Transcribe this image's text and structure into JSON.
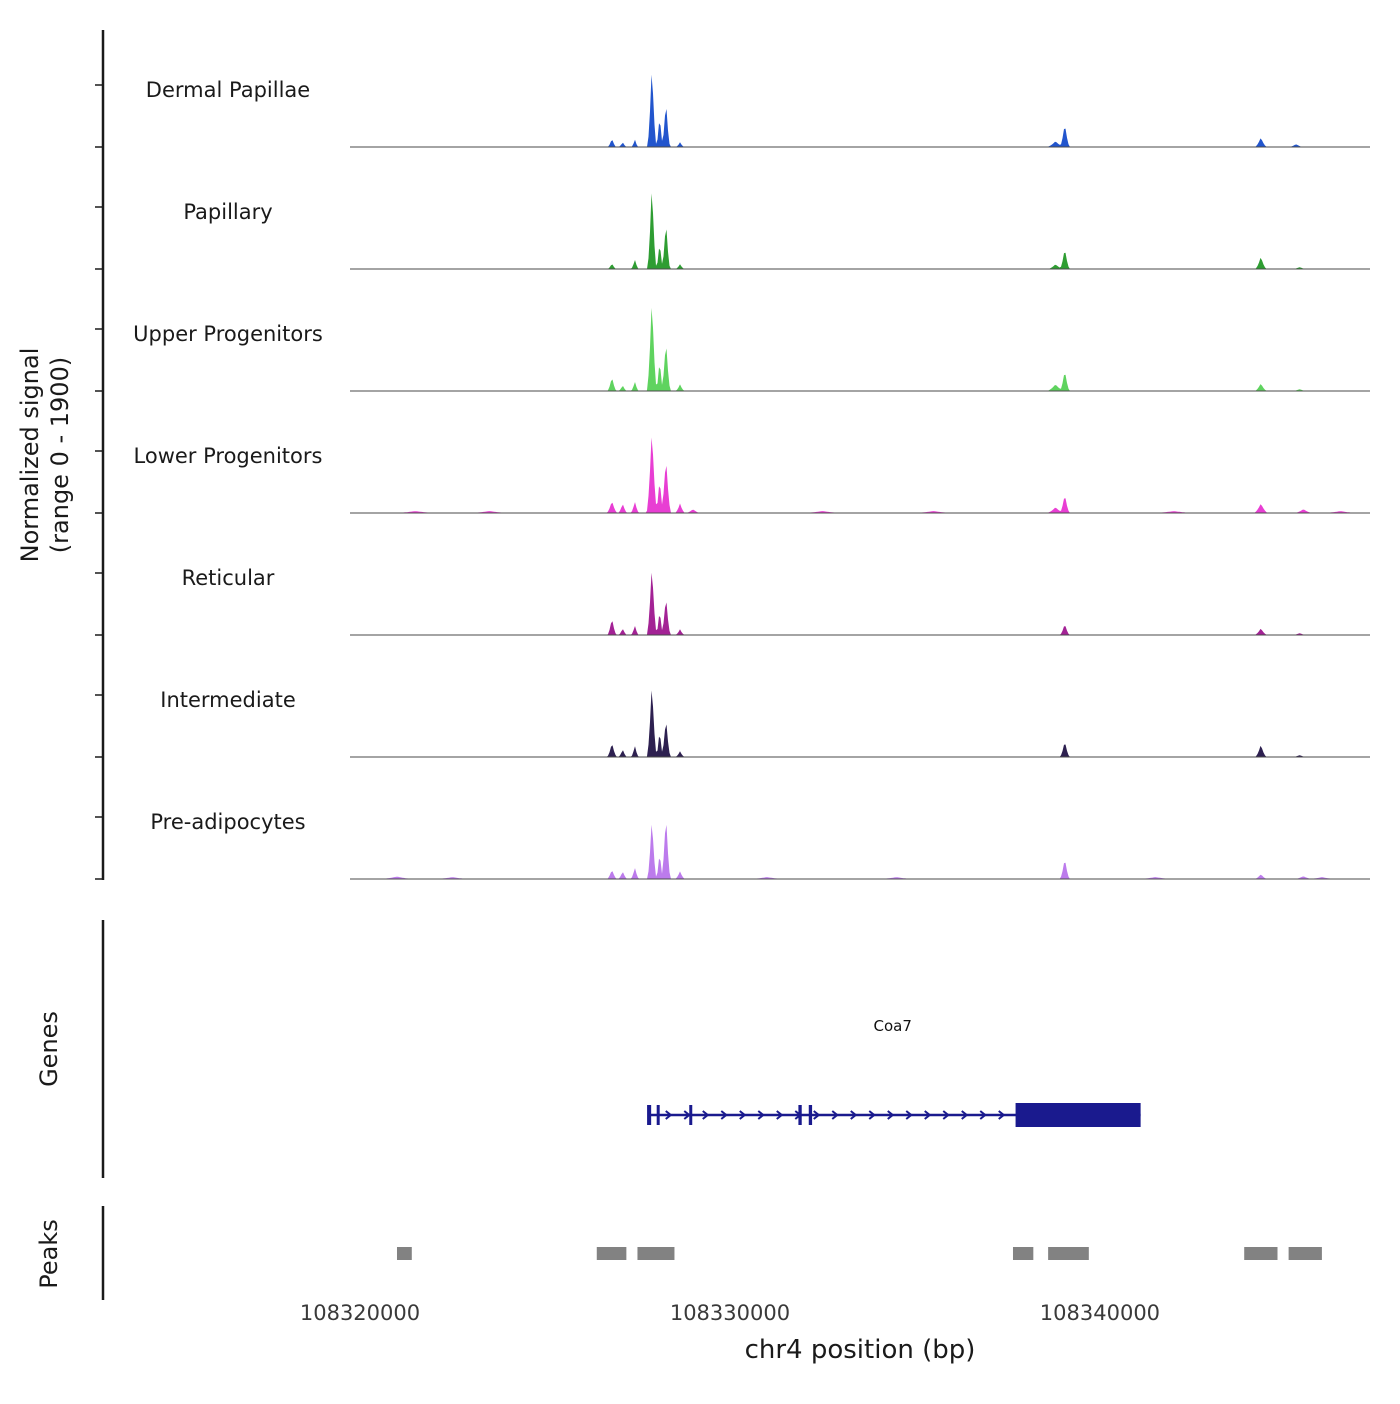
{
  "figure": {
    "y_axis_label_line1": "Normalized signal",
    "y_axis_label_line2": "(range 0 - 1900)",
    "genes_label": "Genes",
    "peaks_label": "Peaks",
    "x_axis_label": "chr4 position (bp)"
  },
  "chart_data": {
    "type": "area",
    "title": "",
    "xlabel": "chr4 position (bp)",
    "ylabel": "Normalized signal (range 0 - 1900)",
    "signal_range": [
      0,
      1900
    ],
    "x_domain": [
      108319730,
      108347300
    ],
    "x_ticks": [
      {
        "value": 108320000,
        "label": "108320000"
      },
      {
        "value": 108330000,
        "label": "108330000"
      },
      {
        "value": 108340000,
        "label": "108340000"
      }
    ],
    "tracks": [
      {
        "label": "Dermal Papillae",
        "color": "#2255cd",
        "peaks": [
          [
            108326810,
            0.09,
            120
          ],
          [
            108327100,
            0.05,
            120
          ],
          [
            108327430,
            0.08,
            100
          ],
          [
            108327890,
            0.88,
            130
          ],
          [
            108328100,
            0.35,
            100
          ],
          [
            108328270,
            0.5,
            120
          ],
          [
            108328650,
            0.05,
            120
          ],
          [
            108338800,
            0.06,
            250
          ],
          [
            108339050,
            0.25,
            140
          ],
          [
            108344350,
            0.1,
            170
          ],
          [
            108345300,
            0.03,
            200
          ]
        ]
      },
      {
        "label": "Papillary",
        "color": "#2e9d32",
        "peaks": [
          [
            108326810,
            0.06,
            120
          ],
          [
            108327430,
            0.1,
            110
          ],
          [
            108327890,
            0.92,
            130
          ],
          [
            108328100,
            0.3,
            100
          ],
          [
            108328270,
            0.52,
            120
          ],
          [
            108328650,
            0.05,
            130
          ],
          [
            108338800,
            0.05,
            220
          ],
          [
            108339050,
            0.22,
            140
          ],
          [
            108344350,
            0.13,
            160
          ],
          [
            108345400,
            0.02,
            200
          ]
        ]
      },
      {
        "label": "Upper Progenitors",
        "color": "#5fd35f",
        "peaks": [
          [
            108326810,
            0.15,
            130
          ],
          [
            108327100,
            0.06,
            120
          ],
          [
            108327430,
            0.1,
            110
          ],
          [
            108327890,
            1.0,
            140
          ],
          [
            108328100,
            0.35,
            100
          ],
          [
            108328270,
            0.55,
            130
          ],
          [
            108328650,
            0.07,
            130
          ],
          [
            108338800,
            0.07,
            250
          ],
          [
            108339050,
            0.22,
            140
          ],
          [
            108344350,
            0.08,
            170
          ],
          [
            108345400,
            0.02,
            200
          ]
        ]
      },
      {
        "label": "Lower Progenitors",
        "color": "#e83ed3",
        "peaks": [
          [
            108326810,
            0.13,
            150
          ],
          [
            108327100,
            0.1,
            130
          ],
          [
            108327430,
            0.12,
            120
          ],
          [
            108327890,
            0.9,
            150
          ],
          [
            108328100,
            0.38,
            110
          ],
          [
            108328270,
            0.6,
            140
          ],
          [
            108328650,
            0.1,
            140
          ],
          [
            108329000,
            0.04,
            200
          ],
          [
            108338800,
            0.06,
            250
          ],
          [
            108339050,
            0.2,
            140
          ],
          [
            108344350,
            0.1,
            200
          ],
          [
            108345500,
            0.04,
            250
          ],
          [
            108321500,
            0.02,
            600
          ],
          [
            108323500,
            0.02,
            600
          ],
          [
            108332500,
            0.02,
            600
          ],
          [
            108335500,
            0.02,
            600
          ],
          [
            108342000,
            0.02,
            600
          ],
          [
            108346500,
            0.02,
            500
          ]
        ]
      },
      {
        "label": "Reticular",
        "color": "#a32295",
        "peaks": [
          [
            108326810,
            0.18,
            130
          ],
          [
            108327100,
            0.07,
            120
          ],
          [
            108327430,
            0.1,
            110
          ],
          [
            108327890,
            0.75,
            140
          ],
          [
            108328100,
            0.28,
            100
          ],
          [
            108328270,
            0.42,
            130
          ],
          [
            108328650,
            0.06,
            130
          ],
          [
            108339050,
            0.12,
            140
          ],
          [
            108344350,
            0.07,
            180
          ],
          [
            108345400,
            0.02,
            200
          ]
        ]
      },
      {
        "label": "Intermediate",
        "color": "#2d2050",
        "peaks": [
          [
            108326810,
            0.15,
            140
          ],
          [
            108327100,
            0.08,
            120
          ],
          [
            108327430,
            0.12,
            110
          ],
          [
            108327890,
            0.8,
            140
          ],
          [
            108328100,
            0.3,
            100
          ],
          [
            108328270,
            0.42,
            130
          ],
          [
            108328650,
            0.06,
            130
          ],
          [
            108339050,
            0.17,
            140
          ],
          [
            108344350,
            0.13,
            160
          ],
          [
            108345400,
            0.02,
            200
          ]
        ]
      },
      {
        "label": "Pre-adipocytes",
        "color": "#bc7bec",
        "peaks": [
          [
            108326810,
            0.1,
            140
          ],
          [
            108327100,
            0.08,
            130
          ],
          [
            108327430,
            0.12,
            120
          ],
          [
            108327890,
            0.66,
            130
          ],
          [
            108328100,
            0.3,
            100
          ],
          [
            108328270,
            0.7,
            130
          ],
          [
            108328650,
            0.08,
            140
          ],
          [
            108339050,
            0.22,
            140
          ],
          [
            108344350,
            0.05,
            180
          ],
          [
            108345500,
            0.03,
            250
          ],
          [
            108321000,
            0.025,
            500
          ],
          [
            108322500,
            0.02,
            500
          ],
          [
            108331000,
            0.02,
            500
          ],
          [
            108334500,
            0.02,
            500
          ],
          [
            108341500,
            0.02,
            500
          ],
          [
            108346000,
            0.02,
            400
          ]
        ]
      }
    ],
    "gene": {
      "name": "Coa7",
      "color": "#1a1a8e",
      "strand": "+",
      "start": 108327780,
      "end": 108341100,
      "label_pos": 108334400,
      "exon_ticks": [
        [
          108327760,
          108327870
        ],
        [
          108328020,
          108328090
        ],
        [
          108328900,
          108328960
        ],
        [
          108331850,
          108331940
        ],
        [
          108332130,
          108332220
        ]
      ],
      "thick_exon": [
        108337720,
        108341100
      ],
      "arrow_start": 108328400,
      "arrow_end": 108337400,
      "arrow_step": 500
    },
    "peak_regions": [
      [
        108321000,
        108321400
      ],
      [
        108326400,
        108327200
      ],
      [
        108327500,
        108328500
      ],
      [
        108337650,
        108338200
      ],
      [
        108338600,
        108339700
      ],
      [
        108343900,
        108344800
      ],
      [
        108345100,
        108346000
      ]
    ],
    "peaks_color": "#828282"
  }
}
